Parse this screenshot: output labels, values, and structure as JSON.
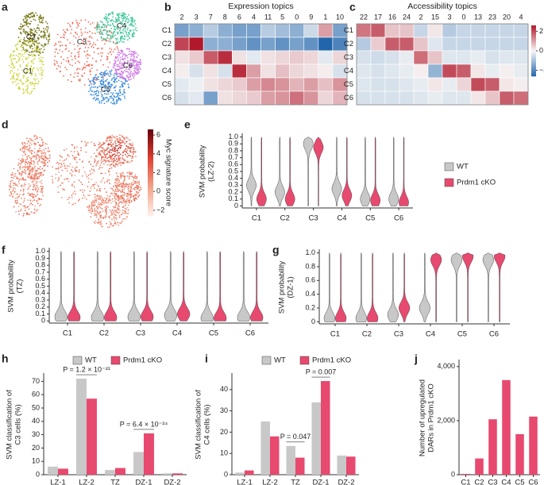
{
  "panels": [
    "a",
    "b",
    "c",
    "d",
    "e",
    "f",
    "g",
    "h",
    "i",
    "j"
  ],
  "chart_data": [
    {
      "type": "umap",
      "clusters": [
        {
          "label": "C1",
          "color": "#cfd63f"
        },
        {
          "label": "C2",
          "color": "#7d7d22"
        },
        {
          "label": "C3",
          "color": "#f26b5b"
        },
        {
          "label": "C4",
          "color": "#3fc79b"
        },
        {
          "label": "C5",
          "color": "#3e8fe0"
        },
        {
          "label": "C6",
          "color": "#d07ee8"
        }
      ]
    },
    {
      "type": "heatmap",
      "title": "Expression topics",
      "columns": [
        "2",
        "3",
        "7",
        "8",
        "6",
        "4",
        "11",
        "5",
        "0",
        "9",
        "1",
        "10"
      ],
      "rows": [
        "C1",
        "C2",
        "C3",
        "C4",
        "C5",
        "C6"
      ],
      "values": [
        [
          -1.2,
          -1.0,
          -0.6,
          -1.0,
          -1.2,
          -1.2,
          -0.6,
          -0.8,
          -1.0,
          -0.4,
          0.8,
          -1.2
        ],
        [
          1.6,
          2.0,
          -1.0,
          -1.0,
          -1.2,
          -1.4,
          -1.2,
          -1.4,
          -1.2,
          -1.4,
          -2.0,
          -1.6
        ],
        [
          0.2,
          0.4,
          1.4,
          1.8,
          0.2,
          -0.2,
          0.2,
          0.3,
          0.4,
          0.3,
          -0.2,
          0.3
        ],
        [
          0.1,
          -0.3,
          0.2,
          -0.3,
          1.8,
          0.8,
          0.2,
          0.5,
          0.3,
          0.2,
          0.1,
          -0.3
        ],
        [
          -0.2,
          -0.1,
          0.2,
          0.3,
          0.4,
          0.8,
          1.0,
          0.9,
          0.6,
          0.8,
          0.5,
          0.9
        ],
        [
          -0.3,
          -0.2,
          -1.2,
          0.2,
          0.3,
          0.4,
          0.8,
          0.9,
          1.2,
          0.9,
          0.3,
          0.6
        ]
      ],
      "clim": [
        -2,
        2
      ],
      "colormap": [
        "#2166ac",
        "#f7f7f7",
        "#b2182b"
      ]
    },
    {
      "type": "heatmap",
      "title": "Accessibility topics",
      "columns": [
        "22",
        "17",
        "16",
        "24",
        "2",
        "15",
        "3",
        "0",
        "13",
        "23",
        "20",
        "4"
      ],
      "rows": [
        "C1",
        "C2",
        "C3",
        "C4",
        "C5",
        "C6"
      ],
      "values": [
        [
          1.5,
          1.8,
          0.6,
          0.6,
          -0.6,
          0.2,
          -0.8,
          -0.6,
          -0.6,
          -0.6,
          -0.6,
          -0.6
        ],
        [
          -0.8,
          0.5,
          1.8,
          1.8,
          0.6,
          -0.3,
          -0.6,
          -0.6,
          -0.6,
          -0.6,
          -0.6,
          -0.6
        ],
        [
          -0.4,
          -0.5,
          -0.4,
          -0.2,
          1.6,
          0.6,
          -0.3,
          -0.3,
          -0.2,
          -0.4,
          -0.3,
          -0.3
        ],
        [
          -0.3,
          -0.4,
          -0.3,
          -0.2,
          0.1,
          -1.2,
          2.0,
          1.8,
          0.2,
          -0.2,
          0.1,
          -0.2
        ],
        [
          -0.3,
          -0.4,
          -0.4,
          -0.3,
          -0.2,
          0.2,
          -0.2,
          0.4,
          2.0,
          1.8,
          0.2,
          0.1
        ],
        [
          -0.4,
          -0.4,
          -0.4,
          -0.4,
          -0.3,
          -0.2,
          -0.3,
          -0.3,
          0.2,
          0.6,
          1.8,
          1.6
        ]
      ],
      "clim": [
        -2.6,
        2.6
      ],
      "colormap": [
        "#2166ac",
        "#f7f7f7",
        "#b2182b"
      ],
      "cticks": [
        2,
        0,
        {
          "value": -2,
          "label": "−2"
        }
      ]
    },
    {
      "type": "umap-score",
      "colorbar_label": "Myc signature score",
      "clim": [
        -2.6,
        6.6
      ],
      "colormap": [
        "#fff0ea",
        "#f4a38a",
        "#e0402f",
        "#67000d"
      ],
      "cticks": [
        6,
        4,
        2,
        0,
        {
          "value": -2,
          "label": "−2"
        }
      ]
    },
    {
      "type": "violin",
      "ylabel": [
        "SVM probability",
        "(LZ-2)"
      ],
      "categories": [
        "C1",
        "C2",
        "C3",
        "C4",
        "C5",
        "C6"
      ],
      "series": [
        {
          "name": "WT",
          "color": "#c8c8c8",
          "values": [
            0.3,
            0.2,
            0.9,
            0.25,
            0.1,
            0.1
          ]
        },
        {
          "name": "Prdm1 cKO",
          "color": "#e8496f",
          "values": [
            0.1,
            0.1,
            0.85,
            0.15,
            0.08,
            0.05
          ]
        }
      ],
      "ylim": [
        -0.03,
        1.03
      ],
      "yticks": [
        0,
        0.1,
        0.2,
        0.3,
        0.4,
        0.5,
        0.6,
        0.7,
        0.8,
        0.9,
        {
          "value": 1,
          "label": "1.0"
        }
      ],
      "legend": "right"
    },
    {
      "type": "violin",
      "ylabel": [
        "SVM probability",
        "(TZ)"
      ],
      "categories": [
        "C1",
        "C2",
        "C3",
        "C4",
        "C5",
        "C6"
      ],
      "series": [
        {
          "name": "WT",
          "color": "#c8c8c8",
          "values": [
            0.06,
            0.05,
            0.06,
            0.08,
            0.04,
            0.05
          ]
        },
        {
          "name": "Prdm1 cKO",
          "color": "#e8496f",
          "values": [
            0.05,
            0.05,
            0.06,
            0.1,
            0.04,
            0.05
          ]
        }
      ],
      "ylim": [
        -0.03,
        1.03
      ],
      "yticks": [
        0,
        0.1,
        0.2,
        0.3,
        0.4,
        0.5,
        0.6,
        0.7,
        0.8,
        0.9,
        {
          "value": 1,
          "label": "1.0"
        }
      ]
    },
    {
      "type": "violin",
      "ylabel": [
        "SVM probability",
        "(DZ-1)"
      ],
      "categories": [
        "C1",
        "C2",
        "C3",
        "C4",
        "C5",
        "C6"
      ],
      "series": [
        {
          "name": "WT",
          "color": "#c8c8c8",
          "values": [
            0.05,
            0.05,
            0.1,
            0.2,
            0.9,
            0.9
          ]
        },
        {
          "name": "Prdm1 cKO",
          "color": "#e8496f",
          "values": [
            0.05,
            0.05,
            0.2,
            0.9,
            0.95,
            0.95
          ]
        }
      ],
      "ylim": [
        -0.03,
        1.03
      ],
      "yticks": [
        0,
        0.2,
        0.4,
        0.6,
        0.8,
        {
          "value": 1,
          "label": "1.0"
        }
      ]
    },
    {
      "type": "bar",
      "ylabel": [
        "SVM classification of",
        "C3 cells (%)"
      ],
      "categories": [
        "LZ-1",
        "LZ-2",
        "TZ",
        "DZ-1",
        "DZ-2"
      ],
      "series": [
        {
          "name": "WT",
          "color": "#c8c8c8",
          "values": [
            6,
            72,
            3.5,
            17,
            1
          ]
        },
        {
          "name": "Prdm1 cKO",
          "color": "#e8496f",
          "values": [
            4.5,
            57,
            5,
            31,
            1
          ]
        }
      ],
      "ylim": [
        0,
        75
      ],
      "yticks": [
        0,
        10,
        20,
        30,
        40,
        50,
        60,
        70
      ],
      "annotations": [
        "P = 1.2 × 10⁻²¹",
        "P = 6.4 × 10⁻²⁴"
      ],
      "legend": "top"
    },
    {
      "type": "bar",
      "ylabel": [
        "SVM classification of",
        "C4 cells (%)"
      ],
      "categories": [
        "LZ-1",
        "LZ-2",
        "TZ",
        "DZ-1",
        "DZ-2"
      ],
      "series": [
        {
          "name": "WT",
          "color": "#c8c8c8",
          "values": [
            1,
            25,
            13.5,
            34,
            9
          ]
        },
        {
          "name": "Prdm1 cKO",
          "color": "#e8496f",
          "values": [
            2,
            18,
            8,
            44,
            8.5
          ]
        }
      ],
      "ylim": [
        0,
        47
      ],
      "yticks": [
        0,
        10,
        20,
        30,
        40
      ],
      "annotations": [
        "P = 0.047",
        "P = 0.007"
      ],
      "legend": "top"
    },
    {
      "type": "bar",
      "ylabel": [
        "Number of upregulated",
        "DARs in Prdm1 cKO"
      ],
      "categories": [
        "C1",
        "C2",
        "C3",
        "C4",
        "C5",
        "C6"
      ],
      "series": [
        {
          "color": "#e8496f",
          "values": [
            30,
            600,
            2050,
            3500,
            1500,
            2150
          ]
        }
      ],
      "ylim": [
        0,
        4200
      ],
      "yticks": [
        0,
        {
          "value": 2000,
          "label": "2,000"
        },
        {
          "value": 4000,
          "label": "4,000"
        }
      ]
    }
  ]
}
